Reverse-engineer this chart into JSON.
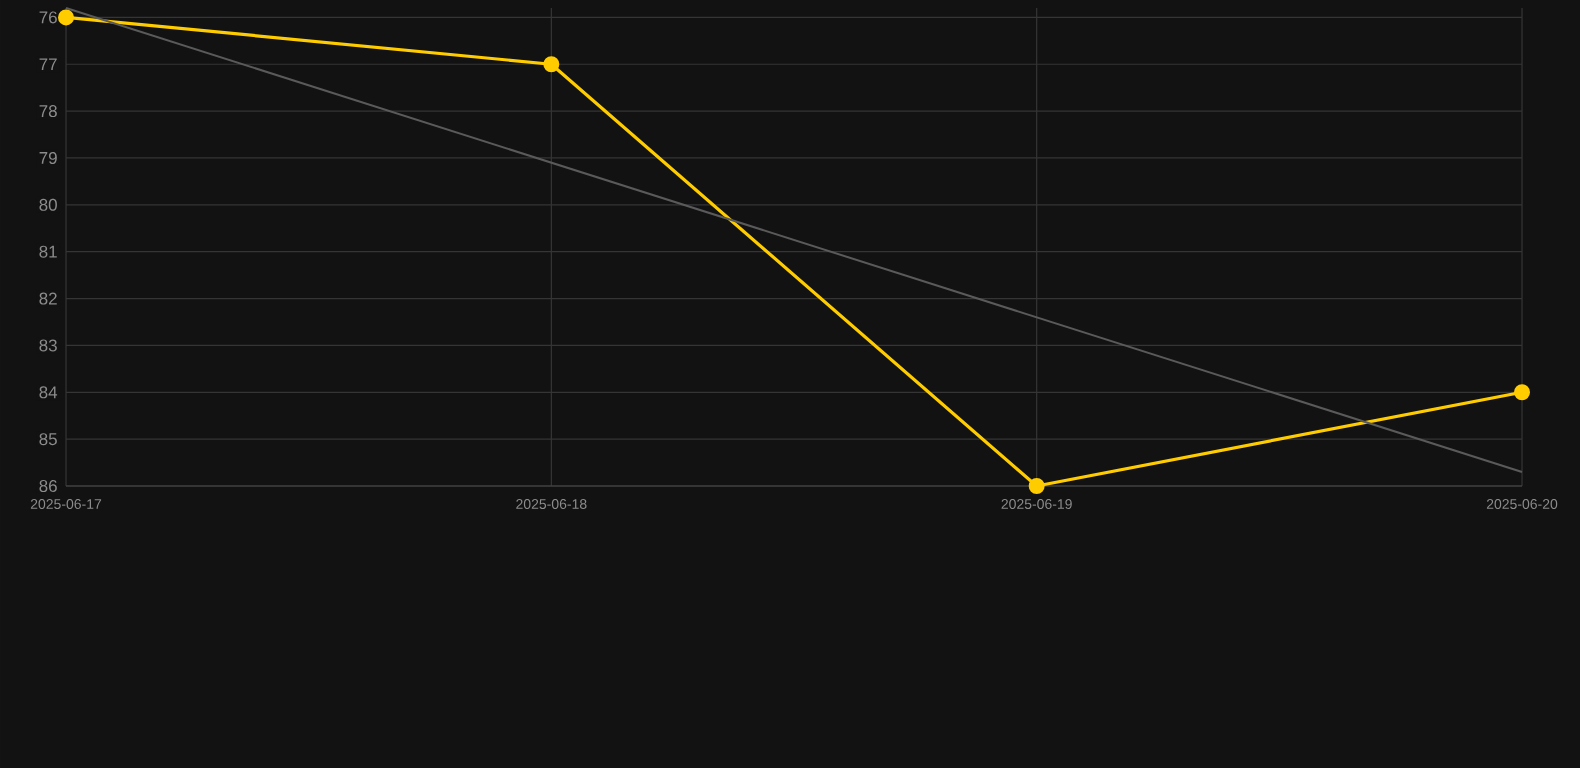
{
  "chart_data": {
    "type": "line",
    "x": [
      "2025-06-17",
      "2025-06-18",
      "2025-06-19",
      "2025-06-20"
    ],
    "series": [
      {
        "color": "#ffcc00",
        "values": [
          76,
          77,
          86,
          84
        ],
        "marker": "circle"
      },
      {
        "type": "line",
        "color": "#5a5a5a",
        "x": [
          "2025-06-17",
          "2025-06-20"
        ],
        "values": [
          75.8,
          85.7
        ],
        "marker": "none"
      }
    ],
    "xlim": [
      "2025-06-17",
      "2025-06-20"
    ],
    "xticks": [
      "2025-06-17",
      "2025-06-18",
      "2025-06-19",
      "2025-06-20"
    ],
    "ylim": [
      86,
      75.8
    ],
    "yticks": [
      76,
      77,
      78,
      79,
      80,
      81,
      82,
      83,
      84,
      85,
      86
    ],
    "grid": true
  }
}
